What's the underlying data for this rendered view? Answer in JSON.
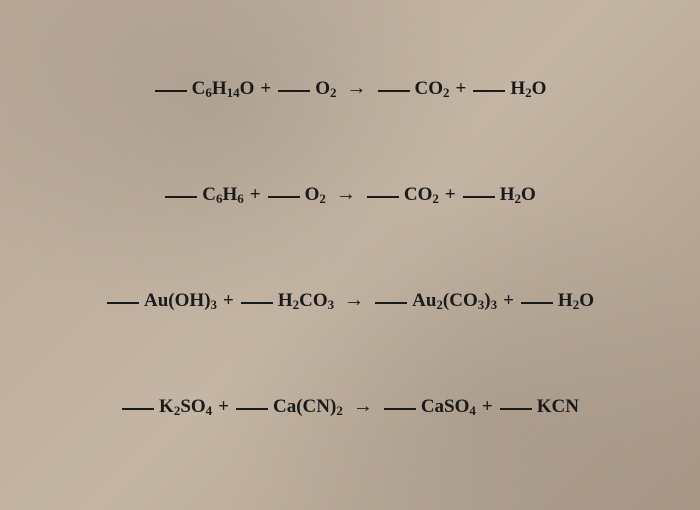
{
  "equations": [
    {
      "terms": [
        {
          "type": "blank"
        },
        {
          "type": "formula",
          "parts": [
            {
              "t": "C"
            },
            {
              "t": "6",
              "sub": true
            },
            {
              "t": "H"
            },
            {
              "t": "14",
              "sub": true
            },
            {
              "t": "O"
            }
          ]
        },
        {
          "type": "plus"
        },
        {
          "type": "blank"
        },
        {
          "type": "formula",
          "parts": [
            {
              "t": "O"
            },
            {
              "t": "2",
              "sub": true
            }
          ]
        },
        {
          "type": "arrow"
        },
        {
          "type": "blank"
        },
        {
          "type": "formula",
          "parts": [
            {
              "t": "CO"
            },
            {
              "t": "2",
              "sub": true
            }
          ]
        },
        {
          "type": "plus"
        },
        {
          "type": "blank"
        },
        {
          "type": "formula",
          "parts": [
            {
              "t": "H"
            },
            {
              "t": "2",
              "sub": true
            },
            {
              "t": "O"
            }
          ]
        }
      ]
    },
    {
      "terms": [
        {
          "type": "blank"
        },
        {
          "type": "formula",
          "parts": [
            {
              "t": "C"
            },
            {
              "t": "6",
              "sub": true
            },
            {
              "t": "H"
            },
            {
              "t": "6",
              "sub": true
            }
          ]
        },
        {
          "type": "plus"
        },
        {
          "type": "blank"
        },
        {
          "type": "formula",
          "parts": [
            {
              "t": "O"
            },
            {
              "t": "2",
              "sub": true
            }
          ]
        },
        {
          "type": "arrow"
        },
        {
          "type": "blank"
        },
        {
          "type": "formula",
          "parts": [
            {
              "t": "CO"
            },
            {
              "t": "2",
              "sub": true
            }
          ]
        },
        {
          "type": "plus"
        },
        {
          "type": "blank"
        },
        {
          "type": "formula",
          "parts": [
            {
              "t": "H"
            },
            {
              "t": "2",
              "sub": true
            },
            {
              "t": "O"
            }
          ]
        }
      ]
    },
    {
      "terms": [
        {
          "type": "blank"
        },
        {
          "type": "formula",
          "parts": [
            {
              "t": "Au(OH)"
            },
            {
              "t": "3",
              "sub": true
            }
          ]
        },
        {
          "type": "plus"
        },
        {
          "type": "blank"
        },
        {
          "type": "formula",
          "parts": [
            {
              "t": "H"
            },
            {
              "t": "2",
              "sub": true
            },
            {
              "t": "CO"
            },
            {
              "t": "3",
              "sub": true
            }
          ]
        },
        {
          "type": "arrow"
        },
        {
          "type": "blank"
        },
        {
          "type": "formula",
          "parts": [
            {
              "t": "Au"
            },
            {
              "t": "2",
              "sub": true
            },
            {
              "t": "(CO"
            },
            {
              "t": "3",
              "sub": true
            },
            {
              "t": ")"
            },
            {
              "t": "3",
              "sub": true
            }
          ]
        },
        {
          "type": "plus"
        },
        {
          "type": "blank"
        },
        {
          "type": "formula",
          "parts": [
            {
              "t": "H"
            },
            {
              "t": "2",
              "sub": true
            },
            {
              "t": "O"
            }
          ]
        }
      ]
    },
    {
      "terms": [
        {
          "type": "blank"
        },
        {
          "type": "formula",
          "parts": [
            {
              "t": "K"
            },
            {
              "t": "2",
              "sub": true
            },
            {
              "t": "SO"
            },
            {
              "t": "4",
              "sub": true
            }
          ]
        },
        {
          "type": "plus"
        },
        {
          "type": "blank"
        },
        {
          "type": "formula",
          "parts": [
            {
              "t": "Ca(CN)"
            },
            {
              "t": "2",
              "sub": true
            }
          ]
        },
        {
          "type": "arrow"
        },
        {
          "type": "blank"
        },
        {
          "type": "formula",
          "parts": [
            {
              "t": "CaSO"
            },
            {
              "t": "4",
              "sub": true
            }
          ]
        },
        {
          "type": "plus"
        },
        {
          "type": "blank"
        },
        {
          "type": "formula",
          "parts": [
            {
              "t": "KCN"
            }
          ]
        }
      ]
    }
  ],
  "symbols": {
    "plus": "+",
    "arrow": "→"
  }
}
